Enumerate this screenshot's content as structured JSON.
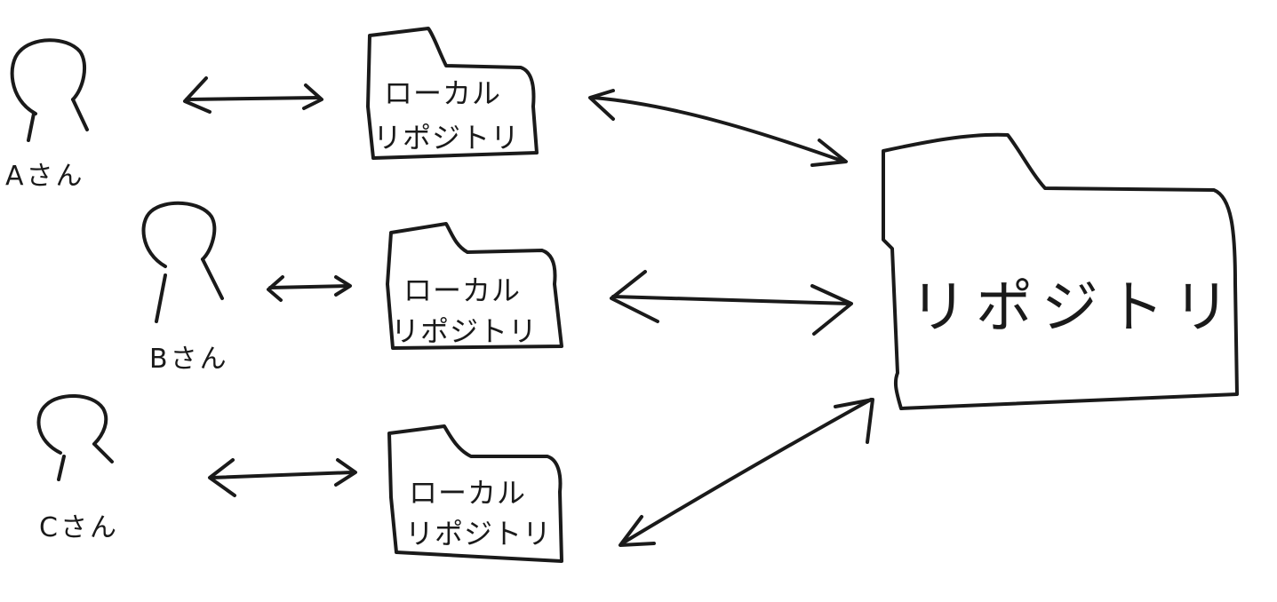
{
  "people": [
    {
      "id": "a",
      "label": "Aさん"
    },
    {
      "id": "b",
      "label": "Bさん"
    },
    {
      "id": "c",
      "label": "Cさん"
    }
  ],
  "local_repositories": [
    {
      "id": "a",
      "line1": "ローカル",
      "line2": "リポジトリ"
    },
    {
      "id": "b",
      "line1": "ローカル",
      "line2": "リポジトリ"
    },
    {
      "id": "c",
      "line1": "ローカル",
      "line2": "リポジトリ"
    }
  ],
  "remote_repository": {
    "label": "リポジトリ"
  },
  "colors": {
    "ink": "#1a1a1a",
    "background": "#ffffff"
  }
}
